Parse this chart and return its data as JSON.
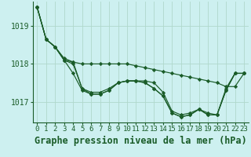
{
  "title": "Graphe pression niveau de la mer (hPa)",
  "background_color": "#cdf0f0",
  "grid_color": "#b0d8cc",
  "line_color": "#1a5c28",
  "x_labels": [
    "0",
    "1",
    "2",
    "3",
    "4",
    "5",
    "6",
    "7",
    "8",
    "9",
    "10",
    "11",
    "12",
    "13",
    "14",
    "15",
    "16",
    "17",
    "18",
    "19",
    "20",
    "21",
    "22",
    "23"
  ],
  "series": [
    [
      1019.5,
      1018.65,
      1018.45,
      1018.15,
      1018.05,
      1018.0,
      1018.0,
      1018.0,
      1018.0,
      1018.0,
      1018.0,
      1017.95,
      1017.9,
      1017.85,
      1017.8,
      1017.75,
      1017.7,
      1017.65,
      1017.6,
      1017.55,
      1017.5,
      1017.4,
      1017.4,
      1017.75
    ],
    [
      1019.5,
      1018.65,
      1018.45,
      1018.1,
      1018.05,
      1017.35,
      1017.25,
      1017.25,
      1017.35,
      1017.5,
      1017.55,
      1017.55,
      1017.55,
      1017.5,
      1017.25,
      1016.75,
      1016.65,
      1016.7,
      1016.8,
      1016.7,
      1016.65,
      1017.35,
      1017.75,
      1017.75
    ],
    [
      1019.5,
      1018.65,
      1018.45,
      1018.1,
      1018.0,
      1017.35,
      1017.2,
      1017.2,
      1017.3,
      1017.5,
      1017.55,
      1017.55,
      1017.5,
      1017.35,
      1017.15,
      1016.7,
      1016.6,
      1016.65,
      1016.8,
      1016.65,
      1016.65,
      1017.3,
      1017.75,
      1017.75
    ],
    [
      1019.5,
      1018.65,
      1018.45,
      1018.1,
      1017.75,
      1017.3,
      1017.2,
      1017.2,
      1017.3,
      1017.5,
      1017.55,
      1017.55,
      1017.5,
      1017.35,
      1017.15,
      1016.7,
      1016.6,
      1016.65,
      1016.8,
      1016.65,
      1016.65,
      1017.3,
      1017.75,
      1017.75
    ]
  ],
  "ylim": [
    1016.45,
    1019.65
  ],
  "yticks": [
    1017,
    1018,
    1019
  ],
  "title_fontsize": 8.5,
  "tick_fontsize": 6.5
}
